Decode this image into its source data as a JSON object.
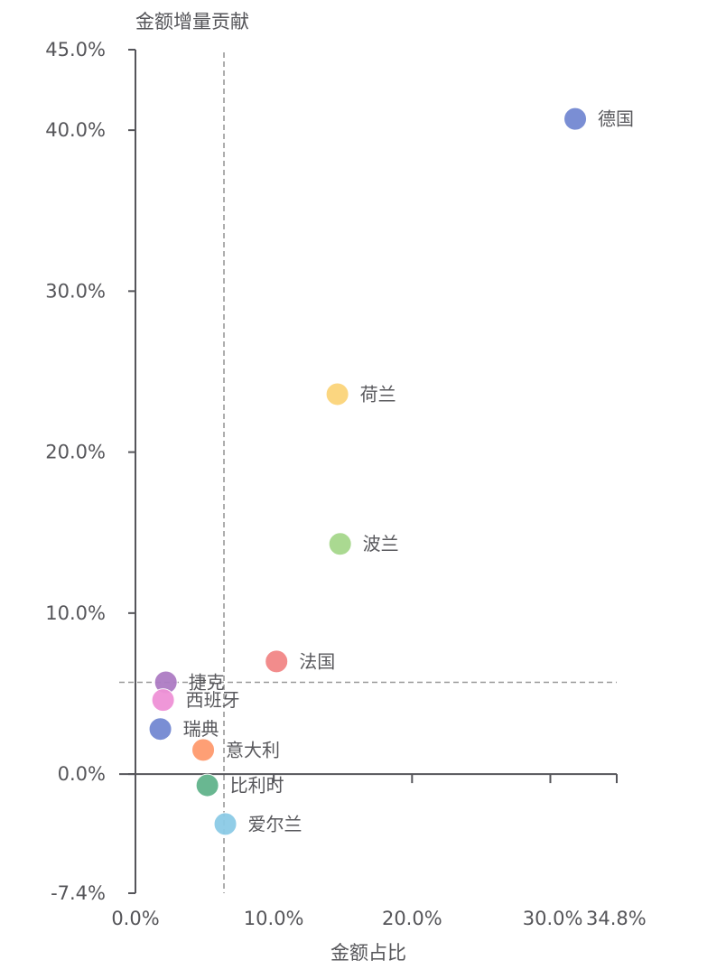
{
  "chart_data": {
    "type": "scatter",
    "title": "",
    "xlabel": "金额占比",
    "ylabel": "金额增量贡献",
    "xlim": [
      0,
      34.8
    ],
    "ylim": [
      -7.4,
      45.0
    ],
    "x_ticks": [
      "0.0%",
      "10.0%",
      "20.0%",
      "30.0%",
      "34.8%"
    ],
    "x_tick_values": [
      0,
      10,
      20,
      30,
      34.8
    ],
    "y_ticks": [
      "45.0%",
      "40.0%",
      "30.0%",
      "20.0%",
      "10.0%",
      "0.0%",
      "-7.4%"
    ],
    "y_tick_values": [
      45,
      40,
      30,
      20,
      10,
      0,
      -7.4
    ],
    "grid": false,
    "legend": null,
    "reference_lines": {
      "x_average": 6.4,
      "y_average": 5.7,
      "style": "dashed",
      "color": "#999999"
    },
    "points": [
      {
        "name": "德国",
        "x": 31.8,
        "y": 40.7,
        "color": "#7389d2"
      },
      {
        "name": "荷兰",
        "x": 14.6,
        "y": 23.6,
        "color": "#fbd47a"
      },
      {
        "name": "波兰",
        "x": 14.8,
        "y": 14.3,
        "color": "#a6d78c"
      },
      {
        "name": "法国",
        "x": 10.2,
        "y": 7.0,
        "color": "#f28686"
      },
      {
        "name": "捷克",
        "x": 2.2,
        "y": 5.7,
        "color": "#ad7cc4"
      },
      {
        "name": "西班牙",
        "x": 2.0,
        "y": 4.6,
        "color": "#ef92d6"
      },
      {
        "name": "瑞典",
        "x": 1.8,
        "y": 2.8,
        "color": "#7389d2"
      },
      {
        "name": "意大利",
        "x": 4.9,
        "y": 1.5,
        "color": "#fe9a6e"
      },
      {
        "name": "比利时",
        "x": 5.2,
        "y": -0.7,
        "color": "#62b48c"
      },
      {
        "name": "爱尔兰",
        "x": 6.5,
        "y": -3.1,
        "color": "#8ccbe6"
      }
    ]
  }
}
